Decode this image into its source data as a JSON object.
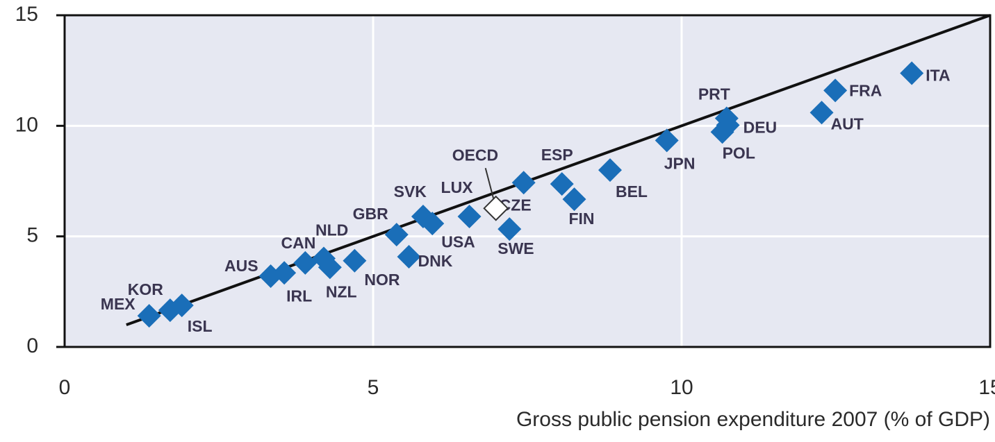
{
  "chart_data": {
    "type": "scatter",
    "x_label": "Gross public pension expenditure 2007 (% of GDP)",
    "xlim": [
      0,
      15
    ],
    "ylim": [
      0,
      15
    ],
    "xticks": [
      0,
      5,
      10,
      15
    ],
    "yticks": [
      0,
      5,
      10,
      15
    ],
    "grid": true,
    "reference_line": {
      "x": [
        1,
        15
      ],
      "y": [
        1,
        15
      ],
      "color": "#111111"
    },
    "series": [
      {
        "color": "#1a6eb8",
        "labels": [
          "MEX",
          "KOR",
          "ISL",
          "AUS",
          "IRL",
          "CAN",
          "NLD",
          "NZL",
          "NOR",
          "GBR",
          "DNK",
          "SVK",
          "USA",
          "LUX",
          "SWE",
          "CZE",
          "ESP",
          "FIN",
          "BEL",
          "JPN",
          "POL",
          "PRT",
          "DEU",
          "AUT",
          "FRA",
          "ITA"
        ],
        "x": [
          1.37,
          1.71,
          1.9,
          3.34,
          3.56,
          3.9,
          4.2,
          4.3,
          4.7,
          5.38,
          5.58,
          5.81,
          5.96,
          6.56,
          7.21,
          7.44,
          8.06,
          8.26,
          8.84,
          9.76,
          10.66,
          10.73,
          10.75,
          12.27,
          12.49,
          13.73
        ],
        "y": [
          1.41,
          1.66,
          1.88,
          3.2,
          3.35,
          3.8,
          4.0,
          3.6,
          3.9,
          5.08,
          4.08,
          5.9,
          5.58,
          5.9,
          5.33,
          7.43,
          7.37,
          6.68,
          8.0,
          9.34,
          9.72,
          10.34,
          10.03,
          10.6,
          11.6,
          12.38
        ]
      },
      {
        "color": "#ffffff",
        "labels": [
          "OECD"
        ],
        "x": [
          6.99
        ],
        "y": [
          6.27
        ]
      }
    ]
  }
}
